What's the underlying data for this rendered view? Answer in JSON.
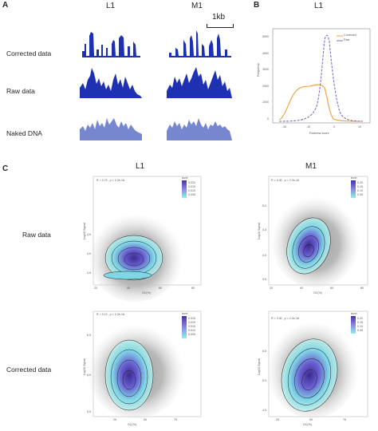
{
  "panel_a": {
    "letter": "A",
    "columns": [
      "L1",
      "M1"
    ],
    "scalebar": "1kb",
    "rows": [
      "Corrected data",
      "Raw data",
      "Naked DNA"
    ]
  },
  "panel_b": {
    "letter": "B",
    "title": "L1",
    "ylabel": "Frequency",
    "xlabel": "Footness score",
    "yticks": [
      "0",
      "1000",
      "2000",
      "3000",
      "4000",
      "5000"
    ],
    "xticks": [
      "-20",
      "-10",
      "0",
      "10"
    ],
    "legend": [
      "Corrected",
      "Raw"
    ],
    "colors": {
      "corrected": "#f39c34",
      "raw": "#7f6ed1"
    }
  },
  "panel_c": {
    "letter": "C",
    "columns": [
      "L1",
      "M1"
    ],
    "rows": [
      "Raw data",
      "Corrected data"
    ],
    "plots": [
      {
        "stats": "R = 0.73 , p < 2.2e-16",
        "ylabel": "Log10 Signal",
        "xlabel": "GC(%)",
        "legend_title": "level",
        "legend_ticks": [
          "0.005",
          "0.010",
          "0.015",
          "0.020"
        ],
        "yticks": [
          "4.5",
          "4.0",
          "3.5"
        ],
        "xticks": [
          "20",
          "40",
          "60",
          "80"
        ]
      },
      {
        "stats": "R = 0.30 , p < 2.2e-16",
        "ylabel": "Log10 Signal",
        "xlabel": "GC(%)",
        "legend_title": "level",
        "legend_ticks": [
          "0.05",
          "0.10",
          "0.15",
          "0.20"
        ],
        "yticks": [
          "5.0",
          "4.5",
          "4.0",
          "3.5"
        ],
        "xticks": [
          "20",
          "40",
          "60",
          "80"
        ]
      },
      {
        "stats": "R = 0.12 , p < 2.2e-16",
        "ylabel": "Log10 Signal",
        "xlabel": "GC(%)",
        "legend_title": "level",
        "legend_ticks": [
          "0.005",
          "0.010",
          "0.015",
          "0.020",
          "0.025"
        ],
        "yticks": [
          "6.5",
          "6.0",
          "5.5"
        ],
        "xticks": [
          "25",
          "50",
          "75"
        ]
      },
      {
        "stats": "R = 0.30 , p < 2.2e-16",
        "ylabel": "Log10 Signal",
        "xlabel": "GC(%)",
        "legend_title": "level",
        "legend_ticks": [
          "0.05",
          "0.10",
          "0.15",
          "0.20"
        ],
        "yticks": [
          "5.5",
          "5.0",
          "4.5"
        ],
        "xticks": [
          "25",
          "50",
          "75"
        ]
      }
    ]
  }
}
